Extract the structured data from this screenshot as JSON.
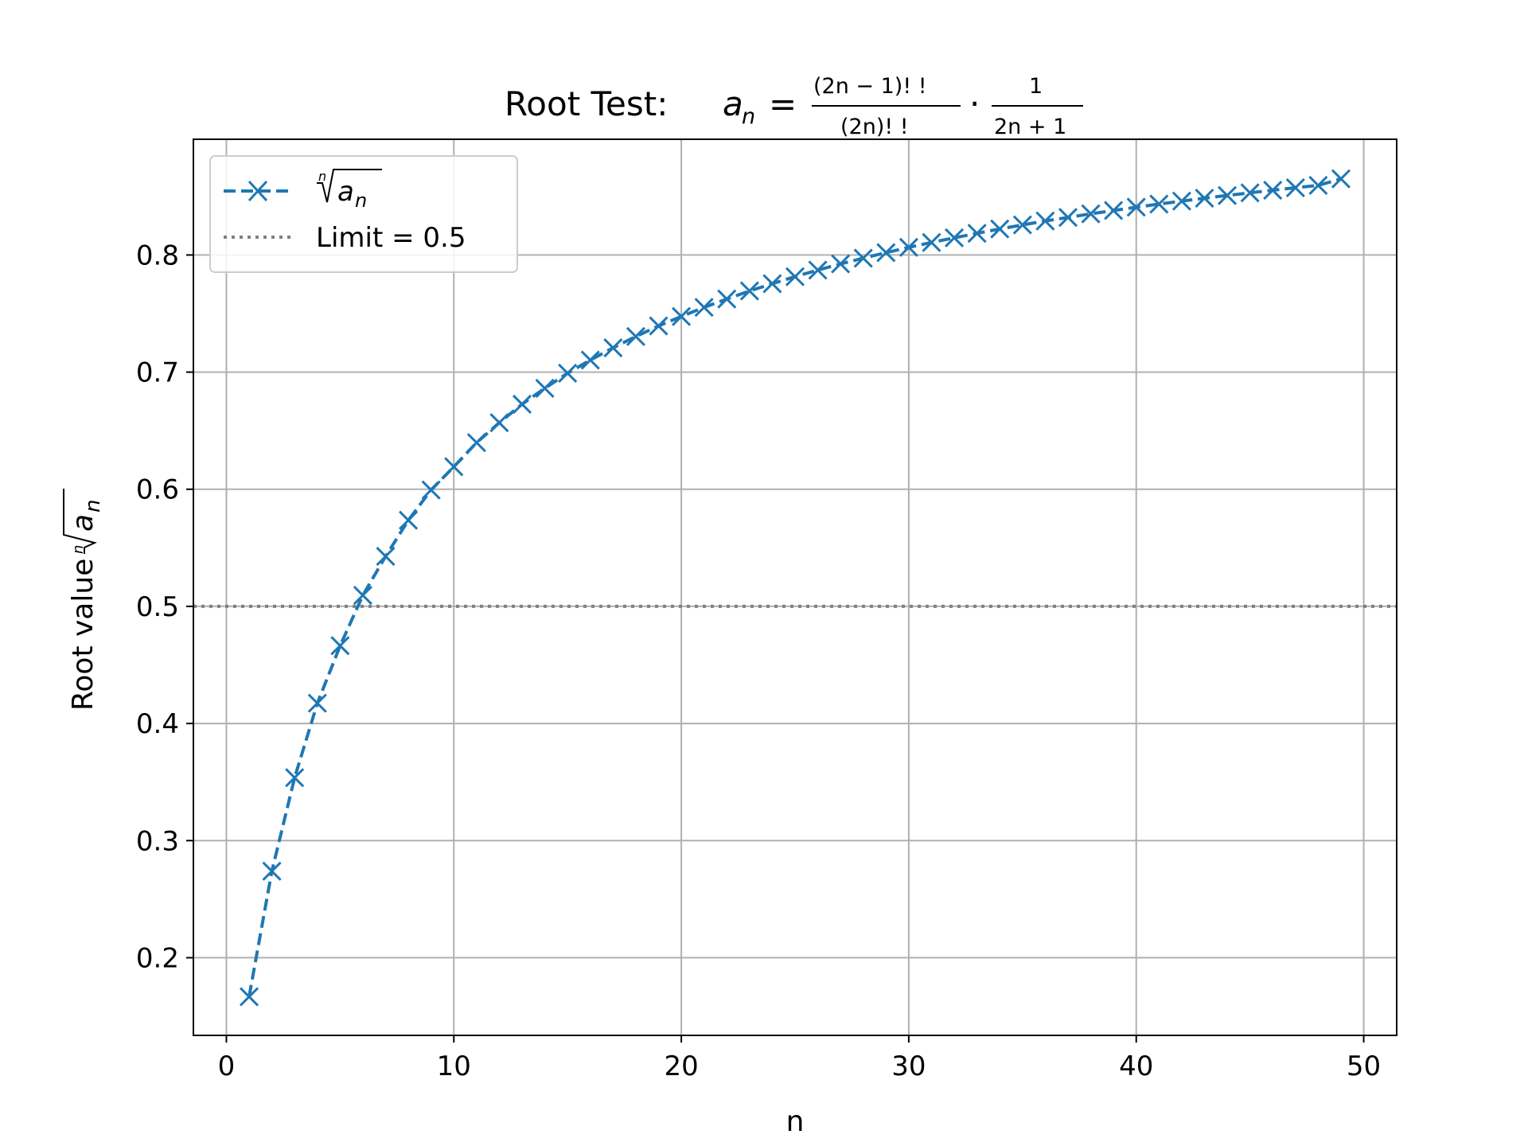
{
  "chart_data": {
    "type": "line",
    "title": {
      "prefix": "Root Test: ",
      "lhs_symbol": "a",
      "lhs_sub": "n",
      "eq": "=",
      "frac1_num": "(2n − 1)! !",
      "frac1_den": "(2n)! !",
      "dot": "·",
      "frac2_num": "1",
      "frac2_den": "2n + 1"
    },
    "xlabel": "n",
    "ylabel": {
      "text": "Root value ",
      "root_index": "n",
      "radicand": "a",
      "radicand_sub": "n"
    },
    "xlim": [
      -1.45,
      51.45
    ],
    "ylim": [
      0.1337,
      0.8988
    ],
    "xticks": [
      0,
      10,
      20,
      30,
      40,
      50
    ],
    "yticks": [
      0.2,
      0.3,
      0.4,
      0.5,
      0.6,
      0.7,
      0.8
    ],
    "grid": true,
    "legend_position": "upper-left",
    "series": [
      {
        "name": "ⁿ√aₙ",
        "legend_root_index": "n",
        "legend_radicand": "a",
        "legend_sub": "n",
        "color": "#1f77b4",
        "linestyle": "dashed",
        "marker": "x",
        "x": [
          1,
          2,
          3,
          4,
          5,
          6,
          7,
          8,
          9,
          10,
          11,
          12,
          13,
          14,
          15,
          16,
          17,
          18,
          19,
          20,
          21,
          22,
          23,
          24,
          25,
          26,
          27,
          28,
          29,
          30,
          31,
          32,
          33,
          34,
          35,
          36,
          37,
          38,
          39,
          40,
          41,
          42,
          43,
          44,
          45,
          46,
          47,
          48,
          49
        ],
        "y": [
          0.1667,
          0.2739,
          0.3537,
          0.4173,
          0.4664,
          0.5094,
          0.5427,
          0.5735,
          0.5994,
          0.6192,
          0.6398,
          0.6568,
          0.6726,
          0.6862,
          0.6991,
          0.7103,
          0.7207,
          0.7304,
          0.7394,
          0.7475,
          0.7553,
          0.7624,
          0.7693,
          0.7755,
          0.7815,
          0.7871,
          0.7924,
          0.7973,
          0.802,
          0.8065,
          0.8107,
          0.8147,
          0.8185,
          0.8222,
          0.8257,
          0.829,
          0.8321,
          0.8351,
          0.838,
          0.8408,
          0.8435,
          0.846,
          0.8485,
          0.8508,
          0.8531,
          0.8553,
          0.8574,
          0.8594,
          0.865
        ]
      },
      {
        "name": "Limit = 0.5",
        "color": "#808080",
        "linestyle": "dotted",
        "y_const": 0.5
      }
    ]
  }
}
